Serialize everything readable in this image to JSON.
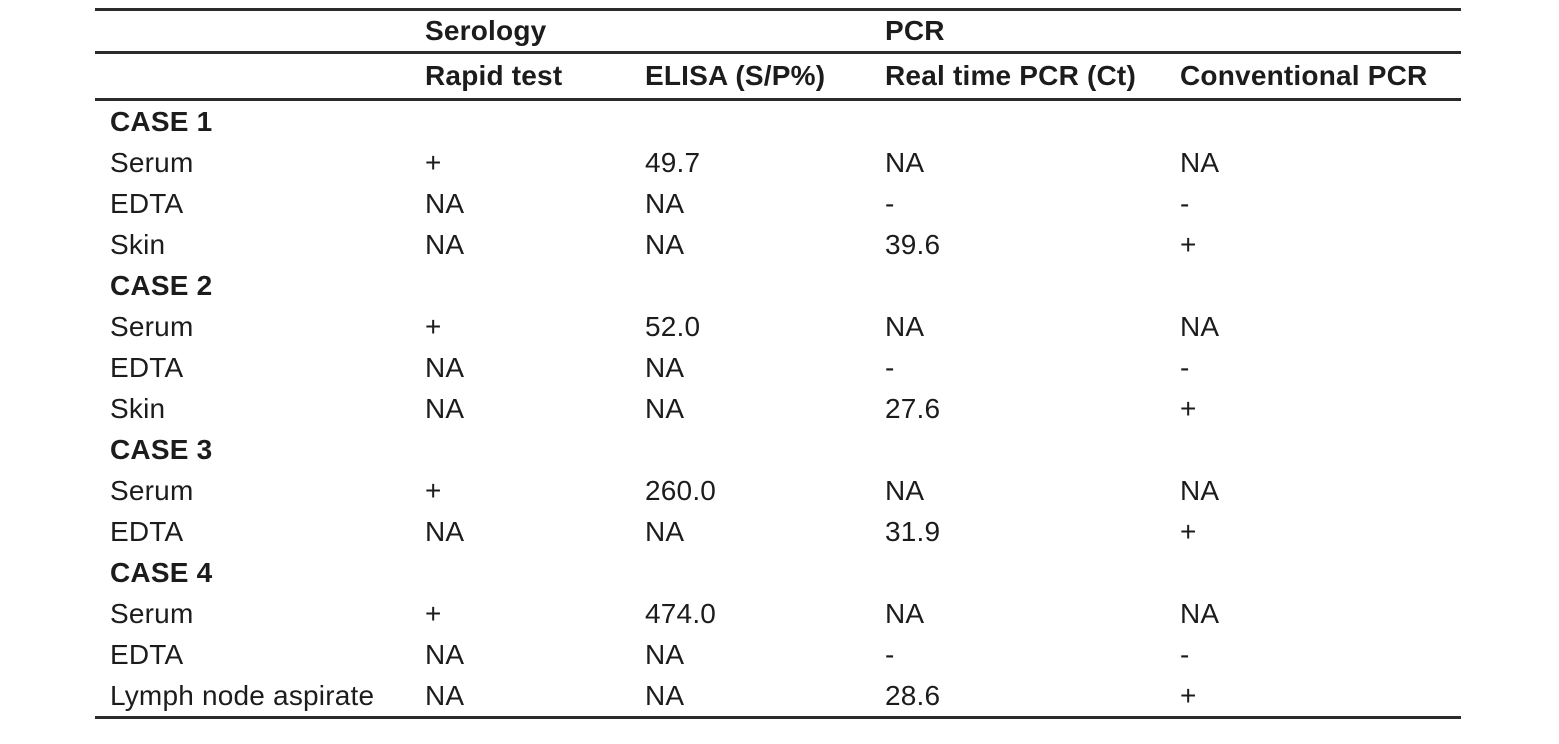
{
  "theme": {
    "background": "#ffffff",
    "text_color": "#1c1c1c",
    "rule_color": "#2b2b2b"
  },
  "table": {
    "header_groups": [
      {
        "label": "",
        "span": 1
      },
      {
        "label": "Serology",
        "span": 2
      },
      {
        "label": "PCR",
        "span": 2
      }
    ],
    "columns": [
      "",
      "Rapid test",
      "ELISA (S/P%)",
      "Real time PCR (Ct)",
      "Conventional PCR"
    ],
    "row_keys": [
      "sample",
      "rapid_test",
      "elisa_sp",
      "real_time_pcr_ct",
      "conventional_pcr"
    ],
    "groups": [
      {
        "case_label": "CASE 1",
        "rows": [
          {
            "sample": "Serum",
            "rapid_test": "+",
            "elisa_sp": "49.7",
            "real_time_pcr_ct": "NA",
            "conventional_pcr": "NA"
          },
          {
            "sample": "EDTA",
            "rapid_test": "NA",
            "elisa_sp": "NA",
            "real_time_pcr_ct": "-",
            "conventional_pcr": "-"
          },
          {
            "sample": "Skin",
            "rapid_test": "NA",
            "elisa_sp": "NA",
            "real_time_pcr_ct": "39.6",
            "conventional_pcr": "+"
          }
        ]
      },
      {
        "case_label": "CASE 2",
        "rows": [
          {
            "sample": "Serum",
            "rapid_test": "+",
            "elisa_sp": "52.0",
            "real_time_pcr_ct": "NA",
            "conventional_pcr": "NA"
          },
          {
            "sample": "EDTA",
            "rapid_test": "NA",
            "elisa_sp": "NA",
            "real_time_pcr_ct": "-",
            "conventional_pcr": "-"
          },
          {
            "sample": "Skin",
            "rapid_test": "NA",
            "elisa_sp": "NA",
            "real_time_pcr_ct": "27.6",
            "conventional_pcr": "+"
          }
        ]
      },
      {
        "case_label": "CASE 3",
        "rows": [
          {
            "sample": "Serum",
            "rapid_test": "+",
            "elisa_sp": "260.0",
            "real_time_pcr_ct": "NA",
            "conventional_pcr": "NA"
          },
          {
            "sample": "EDTA",
            "rapid_test": "NA",
            "elisa_sp": "NA",
            "real_time_pcr_ct": "31.9",
            "conventional_pcr": "+"
          }
        ]
      },
      {
        "case_label": "CASE 4",
        "rows": [
          {
            "sample": "Serum",
            "rapid_test": "+",
            "elisa_sp": "474.0",
            "real_time_pcr_ct": "NA",
            "conventional_pcr": "NA"
          },
          {
            "sample": "EDTA",
            "rapid_test": "NA",
            "elisa_sp": "NA",
            "real_time_pcr_ct": "-",
            "conventional_pcr": "-"
          },
          {
            "sample": "Lymph node aspirate",
            "rapid_test": "NA",
            "elisa_sp": "NA",
            "real_time_pcr_ct": "28.6",
            "conventional_pcr": "+"
          }
        ]
      }
    ]
  }
}
